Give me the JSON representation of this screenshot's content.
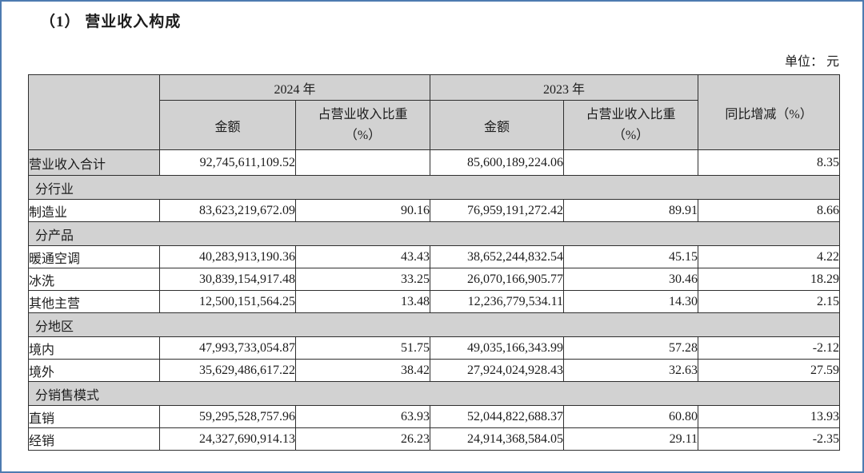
{
  "page": {
    "title": "（1）  营业收入构成",
    "unit_label": "单位： 元"
  },
  "table": {
    "header": {
      "year_2024": "2024 年",
      "year_2023": "2023 年",
      "amount_2024": "金额",
      "amount_2023": "金额",
      "ratio_line1": "占营业收入比重",
      "ratio_line2": "（%）",
      "yoy": "同比增减（%）"
    },
    "rows": [
      {
        "type": "total",
        "label": "营业收入合计",
        "a2024": "92,745,611,109.52",
        "r2024": "",
        "a2023": "85,600,189,224.06",
        "r2023": "",
        "yoy": "8.35"
      },
      {
        "type": "section",
        "label": "分行业"
      },
      {
        "type": "data",
        "label": "制造业",
        "a2024": "83,623,219,672.09",
        "r2024": "90.16",
        "a2023": "76,959,191,272.42",
        "r2023": "89.91",
        "yoy": "8.66"
      },
      {
        "type": "section",
        "label": "分产品"
      },
      {
        "type": "data",
        "label": "暖通空调",
        "a2024": "40,283,913,190.36",
        "r2024": "43.43",
        "a2023": "38,652,244,832.54",
        "r2023": "45.15",
        "yoy": "4.22"
      },
      {
        "type": "data",
        "label": "冰洗",
        "a2024": "30,839,154,917.48",
        "r2024": "33.25",
        "a2023": "26,070,166,905.77",
        "r2023": "30.46",
        "yoy": "18.29"
      },
      {
        "type": "data",
        "label": "其他主营",
        "a2024": "12,500,151,564.25",
        "r2024": "13.48",
        "a2023": "12,236,779,534.11",
        "r2023": "14.30",
        "yoy": "2.15"
      },
      {
        "type": "section",
        "label": "分地区"
      },
      {
        "type": "data",
        "label": "境内",
        "a2024": "47,993,733,054.87",
        "r2024": "51.75",
        "a2023": "49,035,166,343.99",
        "r2023": "57.28",
        "yoy": "-2.12"
      },
      {
        "type": "data",
        "label": "境外",
        "a2024": "35,629,486,617.22",
        "r2024": "38.42",
        "a2023": "27,924,024,928.43",
        "r2023": "32.63",
        "yoy": "27.59"
      },
      {
        "type": "section",
        "label": "分销售模式"
      },
      {
        "type": "data",
        "label": "直销",
        "a2024": "59,295,528,757.96",
        "r2024": "63.93",
        "a2023": "52,044,822,688.37",
        "r2023": "60.80",
        "yoy": "13.93"
      },
      {
        "type": "data",
        "label": "经销",
        "a2024": "24,327,690,914.13",
        "r2024": "26.23",
        "a2023": "24,914,368,584.05",
        "r2023": "29.11",
        "yoy": "-2.35"
      }
    ]
  },
  "colors": {
    "header_fill": "#d2d2d2",
    "section_fill": "#d2d2d2",
    "table_border": "#2f2f2f",
    "page_frame": "#4d7bb0",
    "text": "#1c1c1c"
  }
}
